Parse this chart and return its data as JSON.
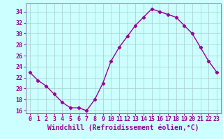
{
  "x": [
    0,
    1,
    2,
    3,
    4,
    5,
    6,
    7,
    8,
    9,
    10,
    11,
    12,
    13,
    14,
    15,
    16,
    17,
    18,
    19,
    20,
    21,
    22,
    23
  ],
  "y": [
    23,
    21.5,
    20.5,
    19.0,
    17.5,
    16.5,
    16.5,
    16.0,
    18.0,
    21.0,
    25.0,
    27.5,
    29.5,
    31.5,
    33.0,
    34.5,
    34.0,
    33.5,
    33.0,
    31.5,
    30.0,
    27.5,
    25.0,
    23.0
  ],
  "line_color": "#990099",
  "marker": "D",
  "marker_size": 2.2,
  "line_width": 1.0,
  "background_color": "#ccffff",
  "grid_color": "#aacccc",
  "xlabel": "Windchill (Refroidissement éolien,°C)",
  "xlabel_color": "#990099",
  "xlabel_fontsize": 7,
  "tick_color": "#990099",
  "tick_fontsize": 6,
  "ylim": [
    15.5,
    35.5
  ],
  "yticks": [
    16,
    18,
    20,
    22,
    24,
    26,
    28,
    30,
    32,
    34
  ],
  "xlim": [
    -0.5,
    23.5
  ],
  "xticks": [
    0,
    1,
    2,
    3,
    4,
    5,
    6,
    7,
    8,
    9,
    10,
    11,
    12,
    13,
    14,
    15,
    16,
    17,
    18,
    19,
    20,
    21,
    22,
    23
  ],
  "spine_color": "#7777aa",
  "axis_bg_color": "#ccffff"
}
